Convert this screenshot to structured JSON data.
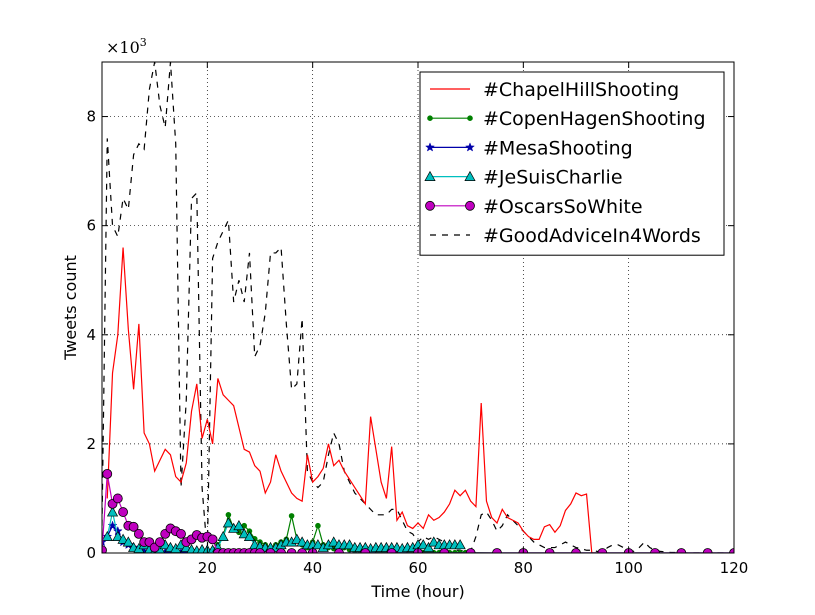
{
  "chart_data": {
    "type": "line",
    "xlabel": "Time (hour)",
    "ylabel": "Tweets count",
    "xlim": [
      0,
      120
    ],
    "ylim": [
      0,
      9000
    ],
    "xticks": [
      20,
      40,
      60,
      80,
      100,
      120
    ],
    "xtick_labels": [
      "20",
      "40",
      "60",
      "80",
      "100",
      "120"
    ],
    "yticks": [
      0,
      2000,
      4000,
      6000,
      8000
    ],
    "ytick_labels": [
      "0",
      "2",
      "4",
      "6",
      "8"
    ],
    "y_multiplier_base": "×10",
    "y_multiplier_exp": "3",
    "grid": true,
    "legend_position": "top-right",
    "series": [
      {
        "name": "#ChapelHillShooting",
        "color": "#ff0000",
        "dash": "solid",
        "marker": "none",
        "x": [
          1,
          2,
          3,
          4,
          5,
          6,
          7,
          8,
          9,
          10,
          11,
          12,
          13,
          14,
          15,
          16,
          17,
          18,
          19,
          20,
          21,
          22,
          23,
          24,
          25,
          26,
          27,
          28,
          29,
          30,
          31,
          32,
          33,
          34,
          35,
          36,
          37,
          38,
          39,
          40,
          41,
          42,
          43,
          44,
          45,
          46,
          47,
          48,
          49,
          50,
          51,
          52,
          53,
          54,
          55,
          56,
          57,
          58,
          59,
          60,
          61,
          62,
          63,
          64,
          65,
          66,
          67,
          68,
          69,
          70,
          71,
          72,
          73,
          74,
          75,
          76,
          77,
          78,
          79,
          80,
          81,
          82,
          83,
          84,
          85,
          86,
          87,
          88,
          89,
          90,
          91,
          92,
          93,
          94,
          95,
          96
        ],
        "y": [
          1000,
          3300,
          4000,
          5600,
          4100,
          3000,
          4200,
          2200,
          2000,
          1500,
          1700,
          1900,
          1800,
          1400,
          1300,
          1650,
          2600,
          3100,
          2100,
          2450,
          2000,
          3200,
          2900,
          2800,
          2700,
          2300,
          1900,
          1850,
          1600,
          1500,
          1100,
          1300,
          1800,
          1500,
          1300,
          1100,
          1000,
          950,
          1800,
          1300,
          1400,
          1550,
          2000,
          1600,
          1700,
          1500,
          1350,
          1200,
          1050,
          900,
          2500,
          1900,
          1300,
          1000,
          1950,
          600,
          750,
          500,
          450,
          550,
          450,
          700,
          600,
          650,
          750,
          900,
          1150,
          1050,
          1150,
          950,
          850,
          2750,
          950,
          650,
          550,
          800,
          650,
          600,
          550,
          400,
          300,
          250,
          250,
          480,
          520,
          380,
          500,
          780,
          900,
          1100,
          1050,
          1080,
          0,
          0,
          0,
          0
        ],
        "y_fix": true
      },
      {
        "name": "#CopenHagenShooting",
        "color": "#008000",
        "dash": "solid",
        "marker": "point",
        "x": [
          20,
          21,
          22,
          23,
          24,
          25,
          26,
          27,
          28,
          29,
          30,
          31,
          32,
          33,
          34,
          35,
          36,
          37,
          38,
          39,
          40,
          41,
          42,
          43,
          44,
          45,
          46,
          47,
          48,
          49,
          50,
          51,
          52,
          53,
          54,
          55,
          56,
          57,
          58,
          59,
          60,
          61,
          62,
          63,
          64,
          65,
          66,
          67,
          68,
          69,
          70,
          75,
          80,
          85,
          90,
          95,
          100,
          105,
          110,
          115,
          120
        ],
        "y": [
          0,
          50,
          150,
          300,
          700,
          450,
          380,
          500,
          400,
          260,
          200,
          150,
          100,
          150,
          200,
          250,
          680,
          250,
          150,
          100,
          200,
          500,
          150,
          100,
          80,
          100,
          100,
          60,
          40,
          30,
          20,
          20,
          20,
          10,
          10,
          10,
          10,
          5,
          5,
          5,
          5,
          5,
          5,
          5,
          5,
          5,
          5,
          5,
          5,
          5,
          5,
          0,
          0,
          0,
          0,
          0,
          0,
          0,
          0,
          0,
          0
        ]
      },
      {
        "name": "#MesaShooting",
        "color": "#0000aa",
        "dash": "solid",
        "marker": "star",
        "x": [
          0,
          1,
          2,
          3,
          4,
          5,
          6,
          7,
          8,
          9,
          10,
          11,
          12,
          13,
          14,
          15,
          16,
          17,
          18,
          19,
          20,
          25,
          30,
          40,
          50,
          60,
          70,
          80,
          90,
          100,
          110,
          120
        ],
        "y": [
          200,
          300,
          500,
          400,
          200,
          150,
          100,
          50,
          30,
          20,
          20,
          10,
          10,
          10,
          10,
          5,
          5,
          5,
          5,
          5,
          5,
          0,
          0,
          0,
          0,
          0,
          0,
          0,
          0,
          0,
          0,
          0
        ]
      },
      {
        "name": "#JeSuisCharlie",
        "color": "#00bfbf",
        "dash": "solid",
        "marker": "triangle",
        "x": [
          1,
          2,
          3,
          4,
          5,
          6,
          7,
          8,
          9,
          10,
          11,
          12,
          13,
          14,
          15,
          16,
          17,
          18,
          19,
          20,
          21,
          22,
          23,
          24,
          25,
          26,
          27,
          28,
          29,
          30,
          31,
          32,
          33,
          34,
          35,
          36,
          37,
          38,
          39,
          40,
          41,
          42,
          43,
          44,
          45,
          46,
          47,
          48,
          49,
          50,
          51,
          52,
          53,
          54,
          55,
          56,
          57,
          58,
          59,
          60,
          61,
          62,
          63,
          64,
          65,
          66,
          67,
          68
        ],
        "y": [
          300,
          750,
          300,
          250,
          200,
          100,
          80,
          150,
          60,
          40,
          60,
          150,
          100,
          80,
          150,
          100,
          60,
          40,
          60,
          50,
          50,
          100,
          300,
          550,
          450,
          500,
          350,
          300,
          150,
          120,
          100,
          100,
          100,
          150,
          200,
          200,
          250,
          200,
          150,
          150,
          150,
          100,
          150,
          200,
          150,
          150,
          150,
          100,
          100,
          100,
          80,
          100,
          100,
          100,
          100,
          100,
          80,
          100,
          100,
          150,
          150,
          100,
          200,
          150,
          150,
          150,
          150,
          150
        ]
      },
      {
        "name": "#OscarsSoWhite",
        "color": "#bf00bf",
        "dash": "solid",
        "marker": "circle",
        "x": [
          0,
          1,
          2,
          3,
          4,
          5,
          6,
          7,
          8,
          9,
          10,
          11,
          12,
          13,
          14,
          15,
          16,
          17,
          18,
          19,
          20,
          21,
          22,
          23,
          24,
          25,
          26,
          27,
          28,
          29,
          30,
          32,
          34,
          36,
          38,
          40,
          45,
          50,
          55,
          60,
          65,
          70,
          75,
          80,
          85,
          90,
          95,
          100,
          105,
          110,
          115,
          120
        ],
        "y": [
          50,
          1450,
          900,
          1000,
          750,
          500,
          480,
          350,
          200,
          200,
          100,
          200,
          350,
          450,
          400,
          350,
          200,
          250,
          330,
          280,
          300,
          250,
          0,
          0,
          0,
          0,
          0,
          0,
          0,
          0,
          0,
          0,
          0,
          0,
          0,
          0,
          0,
          0,
          0,
          0,
          0,
          0,
          0,
          0,
          0,
          0,
          0,
          0,
          0,
          0,
          0,
          0
        ]
      },
      {
        "name": "#GoodAdviceIn4Words",
        "color": "#000000",
        "dash": "dashed",
        "marker": "none",
        "x": [
          0,
          1,
          2,
          3,
          4,
          5,
          6,
          7,
          8,
          9,
          10,
          11,
          12,
          13,
          14,
          15,
          16,
          17,
          18,
          19,
          20,
          21,
          22,
          23,
          24,
          25,
          26,
          27,
          28,
          29,
          30,
          31,
          32,
          33,
          34,
          35,
          36,
          37,
          38,
          39,
          40,
          41,
          42,
          43,
          44,
          45,
          46,
          47,
          48,
          49,
          50,
          51,
          52,
          53,
          54,
          55,
          56,
          57,
          58,
          59,
          60,
          61,
          62,
          63,
          64,
          65,
          66,
          67,
          68,
          69,
          70,
          71,
          72,
          73,
          74,
          75,
          76,
          77,
          78,
          79,
          80,
          81,
          82,
          83,
          84,
          85,
          86,
          87,
          88,
          89,
          90,
          91,
          92,
          93,
          94,
          95,
          96,
          97,
          98,
          99,
          100,
          101,
          102,
          103,
          104,
          105,
          106,
          107,
          108,
          109,
          110,
          111,
          112,
          113,
          114,
          115,
          116,
          117,
          118,
          119,
          120
        ],
        "y": [
          500,
          7600,
          6000,
          5800,
          6500,
          6300,
          7300,
          7500,
          7400,
          8500,
          9000,
          8200,
          7800,
          9000,
          7500,
          1200,
          2800,
          6500,
          6600,
          1200,
          0,
          5400,
          5700,
          5900,
          6100,
          4600,
          5000,
          4600,
          5500,
          3600,
          3800,
          4400,
          5500,
          5500,
          5600,
          4200,
          3000,
          3100,
          4300,
          1500,
          1300,
          1200,
          1300,
          1800,
          2200,
          2000,
          1500,
          1300,
          1100,
          1000,
          900,
          800,
          700,
          700,
          700,
          800,
          800,
          600,
          400,
          350,
          200,
          300,
          250,
          300,
          250,
          200,
          100,
          50,
          50,
          30,
          30,
          300,
          700,
          750,
          600,
          400,
          500,
          700,
          600,
          500,
          400,
          300,
          200,
          150,
          100,
          100,
          100,
          150,
          200,
          150,
          100,
          80,
          50,
          50,
          30,
          20,
          100,
          150,
          150,
          100,
          50,
          30,
          100,
          200,
          100,
          50,
          30,
          20,
          10,
          10,
          0,
          0,
          0,
          0,
          0,
          0,
          0,
          0,
          0,
          0,
          0
        ]
      }
    ]
  }
}
